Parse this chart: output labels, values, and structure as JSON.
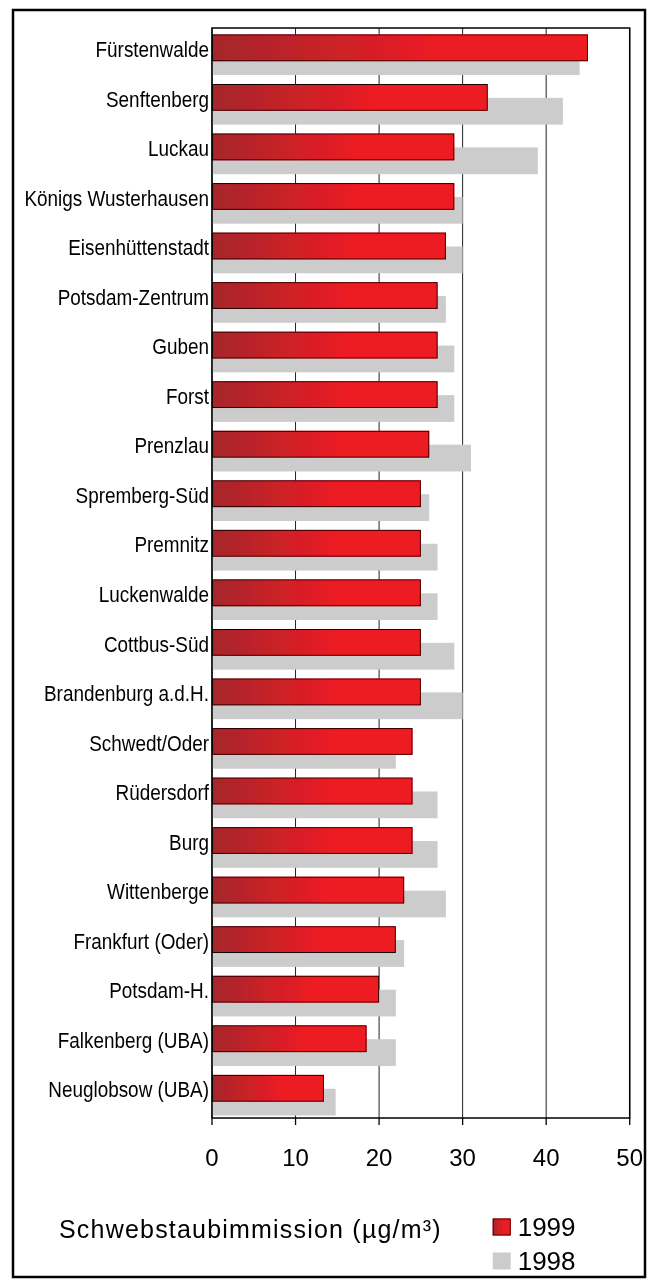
{
  "chart_data": {
    "type": "bar",
    "orientation": "horizontal",
    "categories": [
      "Fürstenwalde",
      "Senftenberg",
      "Luckau",
      "Königs Wusterhausen",
      "Eisenhüttenstadt",
      "Potsdam-Zentrum",
      "Guben",
      "Forst",
      "Prenzlau",
      "Spremberg-Süd",
      "Premnitz",
      "Luckenwalde",
      "Cottbus-Süd",
      "Brandenburg a.d.H.",
      "Schwedt/Oder",
      "Rüdersdorf",
      "Burg",
      "Wittenberge",
      "Frankfurt (Oder)",
      "Potsdam-H.",
      "Falkenberg (UBA)",
      "Neuglobsow (UBA)"
    ],
    "series": [
      {
        "name": "1999",
        "color": "#ec1c24",
        "values": [
          45,
          33,
          29,
          29,
          28,
          27,
          27,
          27,
          26,
          25,
          25,
          25,
          25,
          25,
          24,
          24,
          24,
          23,
          22,
          20,
          18.5,
          13.4
        ]
      },
      {
        "name": "1998",
        "color": "#cccccc",
        "values": [
          44,
          42,
          39,
          30,
          30,
          28,
          29,
          29,
          31,
          26,
          27,
          27,
          29,
          30,
          22,
          27,
          27,
          28,
          23,
          22,
          22,
          14.8
        ]
      }
    ],
    "xlabel": "Schwebstaubimmission (µg/m³)",
    "xlim": [
      0,
      50
    ],
    "xticks": [
      0,
      10,
      20,
      30,
      40,
      50
    ],
    "grid": "x",
    "legend": "bottom right"
  }
}
